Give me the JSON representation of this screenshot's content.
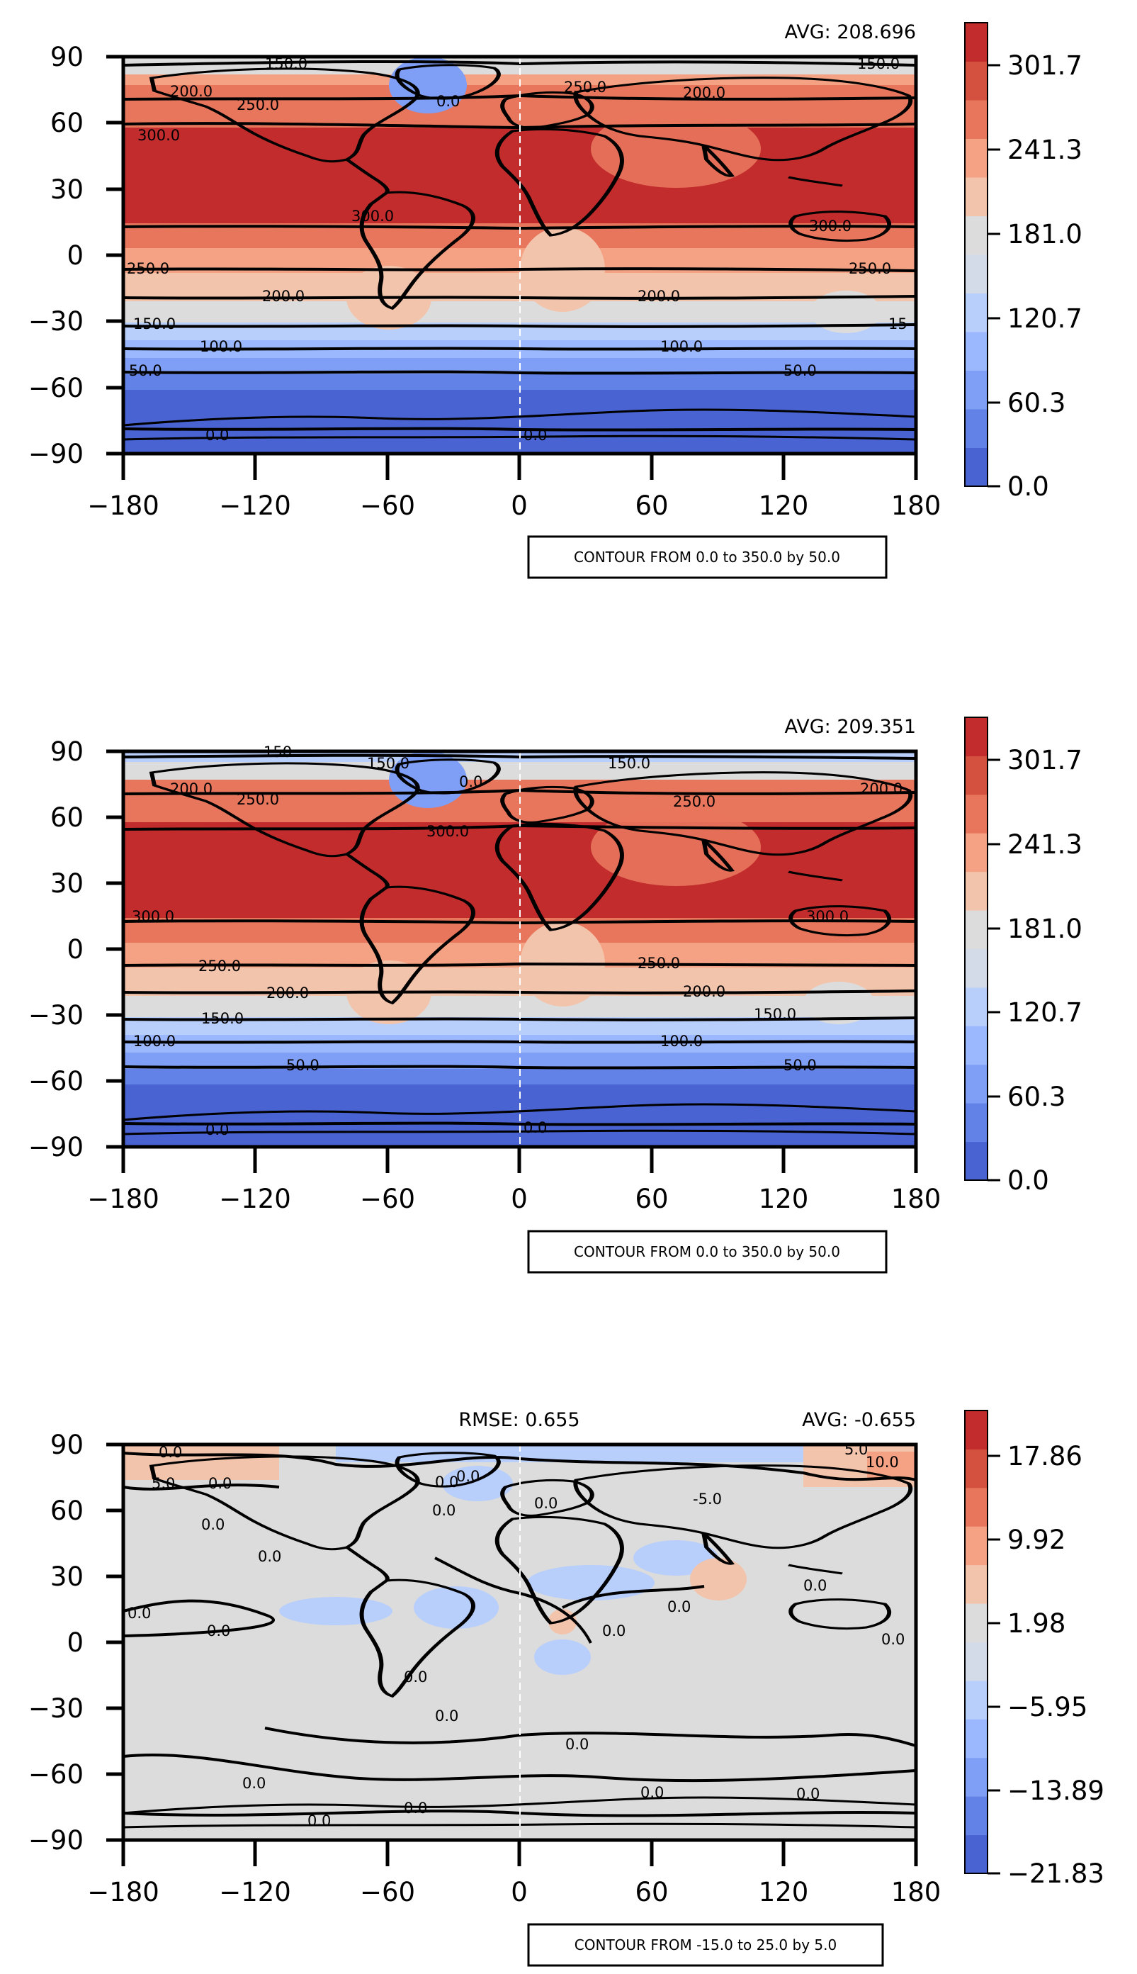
{
  "panels": [
    {
      "id": "top",
      "stats_right": "AVG: 208.696",
      "stats_left": "",
      "contour_note": "CONTOUR FROM 0.0 to 350.0 by 50.0",
      "colorbar": {
        "ticks": [
          "301.7",
          "241.3",
          "181.0",
          "120.7",
          "60.3",
          "0.0"
        ]
      },
      "contour_labels": [
        "150.0",
        "150.0",
        "200.0",
        "250.0",
        "250.0",
        "200.0",
        "300.0",
        "300.0",
        "300.0",
        "250.0",
        "250.0",
        "200.0",
        "200.0",
        "150.0",
        "15",
        "100.0",
        "100.0",
        "50.0",
        "50.0",
        "0.0",
        "0.0",
        "0.0"
      ]
    },
    {
      "id": "middle",
      "stats_right": "AVG: 209.351",
      "stats_left": "",
      "contour_note": "CONTOUR FROM 0.0 to 350.0 by 50.0",
      "colorbar": {
        "ticks": [
          "301.7",
          "241.3",
          "181.0",
          "120.7",
          "60.3",
          "0.0"
        ]
      },
      "contour_labels": [
        "150.",
        "150.0",
        "150.0",
        "200.0",
        "250.0",
        "250.0",
        "200.0",
        "300.0",
        "300.0",
        "300.0",
        "0.0",
        "250.0",
        "250.0",
        "200.0",
        "200.0",
        "150.0",
        "150.0",
        "100.0",
        "100.0",
        "50.0",
        "50.0",
        "0.0",
        "0.0"
      ]
    },
    {
      "id": "bottom",
      "stats_right": "AVG: -0.655",
      "stats_left": "RMSE: 0.655",
      "contour_note": "CONTOUR FROM -15.0 to 25.0 by 5.0",
      "colorbar": {
        "ticks": [
          "17.86",
          "9.92",
          "1.98",
          "−5.95",
          "−13.89",
          "−21.83"
        ]
      },
      "contour_labels": [
        "0.0",
        "5.0",
        "0.0",
        "0.0",
        "0.0",
        "0.0",
        "0.0",
        "0.0",
        "0.0",
        "0.0",
        "0.0",
        "0.0",
        "0.0",
        "0.0",
        "0.0",
        "0.0",
        "0.0",
        "5.0",
        "10.0",
        "-5.0",
        "0.0",
        "0.0",
        "0.0",
        "0.0",
        "0.0",
        "0.0"
      ]
    }
  ],
  "axes": {
    "x_ticks": [
      "−180",
      "−120",
      "−60",
      "0",
      "60",
      "120",
      "180"
    ],
    "y_ticks": [
      "90",
      "60",
      "30",
      "0",
      "−30",
      "−60",
      "−90"
    ]
  },
  "colors": {
    "levels_abs": [
      "#4a63d3",
      "#6282e8",
      "#7f9ef5",
      "#9bb8ff",
      "#b8cefb",
      "#d4dbe8",
      "#dcdcdc",
      "#f3c4ac",
      "#f4a283",
      "#e8765c",
      "#d4503f",
      "#c22c2d"
    ],
    "levels_diff": [
      "#4a63d3",
      "#6282e8",
      "#7f9ef5",
      "#9bb8ff",
      "#b8cefb",
      "#d4dbe8",
      "#dcdcdc",
      "#f3c4ac",
      "#f4a283",
      "#e8765c",
      "#d4503f",
      "#c22c2d"
    ],
    "background_diff": "#dcdcdc",
    "land": "#000000"
  }
}
